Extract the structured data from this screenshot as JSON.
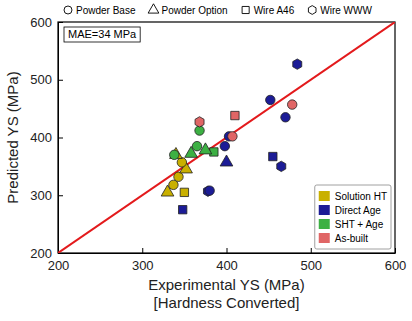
{
  "chart_data": {
    "type": "scatter",
    "ylabel": "Predicted YS (MPa)",
    "xlabel": [
      "Experimental YS (MPa)",
      "[Hardness Converted]"
    ],
    "annotation": "MAE=34 MPa",
    "xlim": [
      200,
      600
    ],
    "ylim": [
      200,
      600
    ],
    "xticks": [
      200,
      300,
      400,
      500,
      600
    ],
    "yticks": [
      200,
      300,
      400,
      500,
      600
    ],
    "grid": false,
    "legend": "lower right",
    "marker_legend": [
      {
        "name": "Powder Base",
        "marker": "circle"
      },
      {
        "name": "Powder Option",
        "marker": "triangle"
      },
      {
        "name": "Wire A46",
        "marker": "square"
      },
      {
        "name": "Wire WWW",
        "marker": "hexagon"
      }
    ],
    "identity_line": {
      "type": "line",
      "color": "#e31a1c",
      "x": [
        200,
        600
      ],
      "values": [
        200,
        600
      ]
    },
    "series": [
      {
        "name": "Solution HT",
        "color": "#c9b000",
        "x": [
          330,
          337,
          343,
          350,
          352,
          347,
          340
        ],
        "values": [
          305,
          318,
          332,
          305,
          345,
          357,
          370
        ],
        "markers": [
          "triangle",
          "circle",
          "circle",
          "square",
          "triangle",
          "circle",
          "triangle"
        ]
      },
      {
        "name": "Direct Age",
        "color": "#1c1c96",
        "x": [
          348,
          378,
          380,
          398,
          400,
          403,
          455,
          465,
          452,
          470,
          484
        ],
        "values": [
          275,
          307,
          308,
          385,
          357,
          402,
          367,
          350,
          465,
          435,
          527
        ],
        "markers": [
          "square",
          "hexagon",
          "circle",
          "circle",
          "triangle",
          "circle",
          "square",
          "hexagon",
          "circle",
          "circle",
          "hexagon"
        ]
      },
      {
        "name": "SHT + Age",
        "color": "#3cb043",
        "x": [
          338,
          358,
          365,
          368,
          385,
          375
        ],
        "values": [
          370,
          372,
          385,
          412,
          375,
          378
        ],
        "markers": [
          "circle",
          "triangle",
          "circle",
          "circle",
          "square",
          "triangle"
        ]
      },
      {
        "name": "As-built",
        "color": "#e06666",
        "x": [
          368,
          410,
          407,
          478
        ],
        "values": [
          427,
          438,
          402,
          457
        ],
        "markers": [
          "hexagon",
          "square",
          "circle",
          "circle"
        ]
      }
    ]
  }
}
